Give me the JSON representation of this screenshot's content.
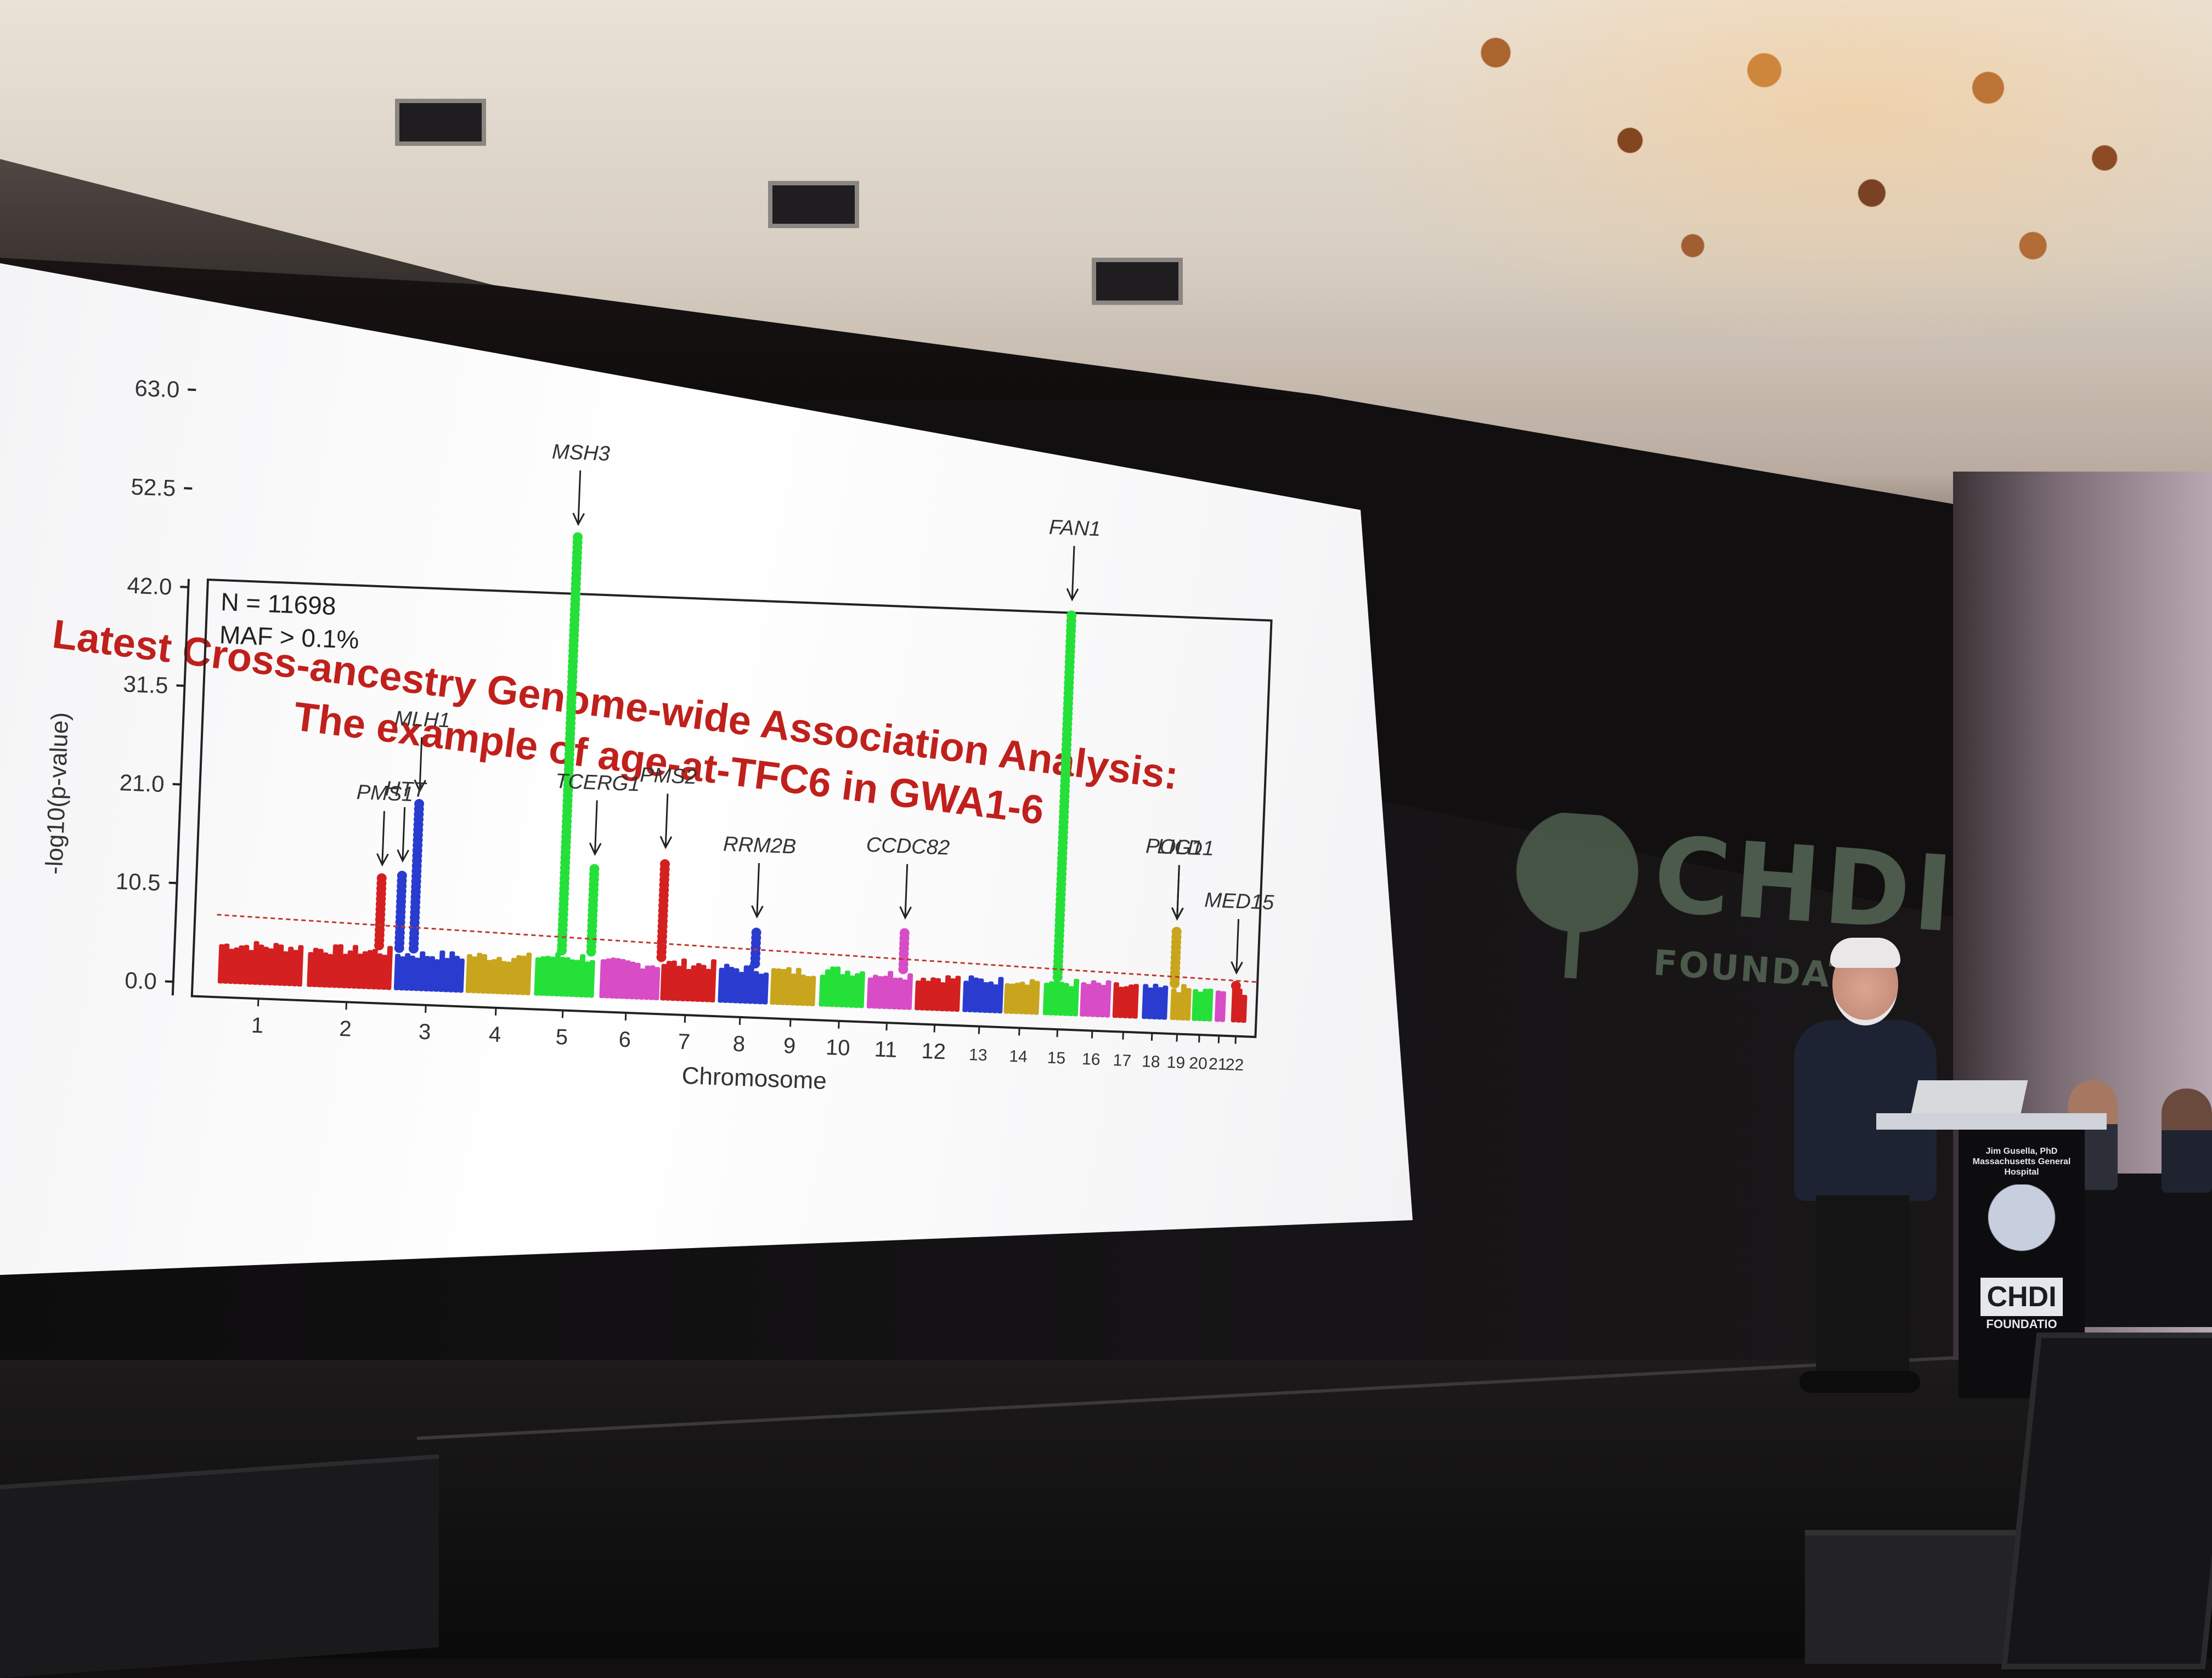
{
  "slide": {
    "title_line1": "Latest Cross-ancestry Genome-wide Association Analysis:",
    "title_line2": "The example of age-at-TFC6 in GWA1-6"
  },
  "colors": {
    "title": "#c0201c",
    "chromosomes": [
      "#d42020",
      "#d42020",
      "#2a3ccf",
      "#c9a51e",
      "#26e03a",
      "#d84cc6",
      "#d42020",
      "#2a3ccf",
      "#c9a51e",
      "#26e03a",
      "#d84cc6",
      "#d42020",
      "#2a3ccf",
      "#c9a51e",
      "#26e03a",
      "#d84cc6",
      "#d42020",
      "#2a3ccf",
      "#c9a51e",
      "#26e03a",
      "#d84cc6",
      "#d42020"
    ],
    "threshold_line": "#c0392b"
  },
  "chart_data": {
    "type": "scatter",
    "title": "",
    "annotations_text": [
      "N = 11698",
      "MAF > 0.1%"
    ],
    "xlabel": "Chromosome",
    "ylabel": "-log10(p-value)",
    "yticks": [
      "0.0",
      "10.5",
      "21.0",
      "31.5",
      "42.0",
      "52.5",
      "63.0"
    ],
    "ylim": [
      0,
      63
    ],
    "xticks": [
      "1",
      "2",
      "3",
      "4",
      "5",
      "6",
      "7",
      "8",
      "9",
      "10",
      "11",
      "12",
      "13",
      "14",
      "15",
      "16",
      "17",
      "18",
      "19",
      "20",
      "21",
      "22"
    ],
    "significance_threshold": 7.3,
    "chromosome_baseline_max": [
      4.8,
      4.7,
      4.5,
      4.6,
      4.9,
      4.4,
      4.6,
      4.3,
      4.2,
      4.5,
      4.3,
      4.1,
      4.0,
      4.2,
      4.1,
      4.0,
      3.9,
      3.8,
      3.9,
      3.7,
      3.8,
      3.9
    ],
    "peaks": [
      {
        "chromosome": 2,
        "value": 12.0,
        "label": "PMS1"
      },
      {
        "chromosome": 3,
        "value": 20.0,
        "label": "MLH1"
      },
      {
        "chromosome": 3,
        "value": 12.5,
        "label": "HTT"
      },
      {
        "chromosome": 5,
        "value": 49.0,
        "label": "MSH3"
      },
      {
        "chromosome": 5,
        "value": 14.0,
        "label": "TCERG1"
      },
      {
        "chromosome": 7,
        "value": 15.0,
        "label": "PMS2"
      },
      {
        "chromosome": 8,
        "value": 8.0,
        "label": "RRM2B"
      },
      {
        "chromosome": 11,
        "value": 8.5,
        "label": "CCDC82"
      },
      {
        "chromosome": 15,
        "value": 43.0,
        "label": "FAN1"
      },
      {
        "chromosome": 19,
        "value": 9.5,
        "label": "LIG1"
      },
      {
        "chromosome": 19,
        "value": 9.5,
        "label": "POLD1"
      },
      {
        "chromosome": 22,
        "value": 4.0,
        "label": "MED15"
      }
    ],
    "grid": false,
    "legend": "none"
  },
  "backdrop": {
    "logo_word": "CHDI",
    "logo_sub": "FOUNDATIO"
  },
  "podium": {
    "name": "Jim Gusella, PhD",
    "affiliation": "Massachusetts General Hospital",
    "logo_word": "CHDI",
    "logo_sub": "FOUNDATIO"
  }
}
